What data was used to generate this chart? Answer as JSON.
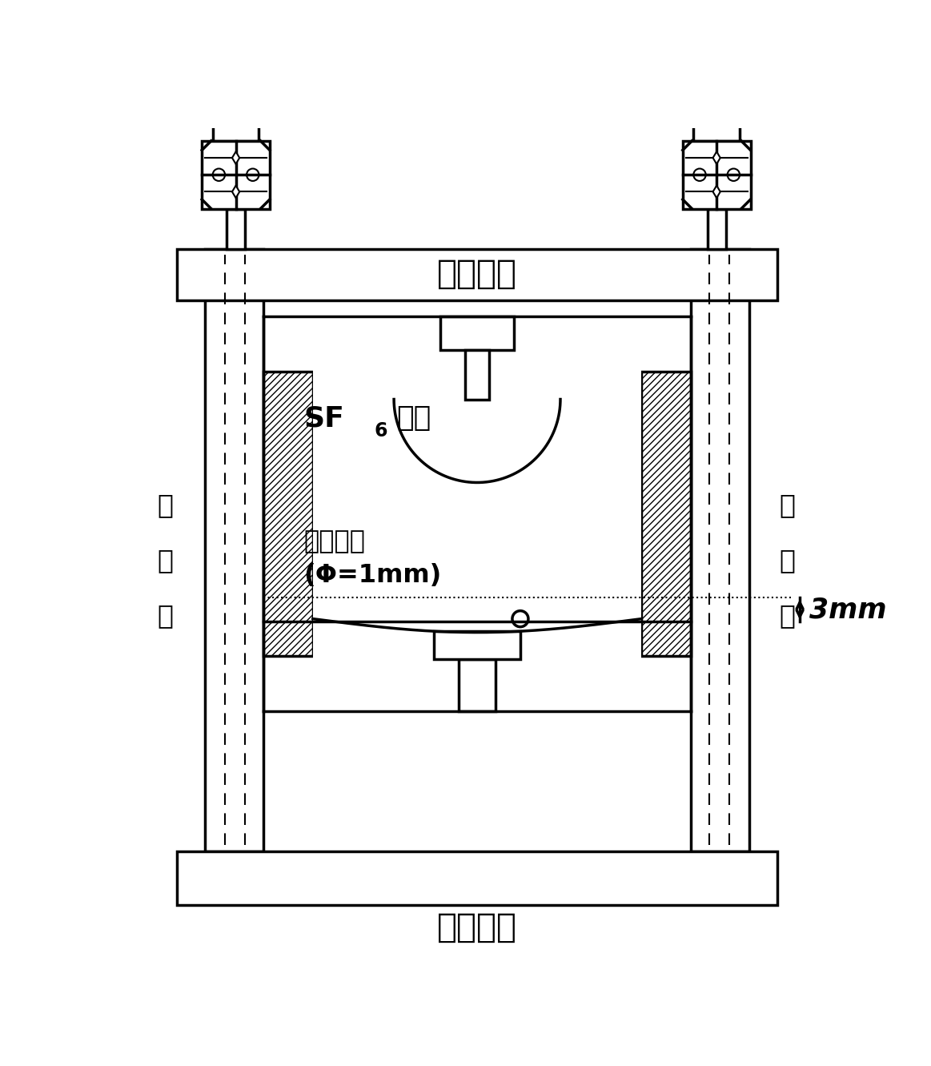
{
  "bg_color": "#ffffff",
  "lc": "#000000",
  "lw": 2.5,
  "lw_thin": 1.5,
  "text_high": "高压电极",
  "text_ground": "接地电极",
  "text_insulator": [
    "绝",
    "缘",
    "体"
  ],
  "text_sf6": "SF",
  "text_sf6_sub": "6",
  "text_sf6_rest": "气体",
  "text_particle": "金属微粒",
  "text_particle2": "(Φ=1mm)",
  "text_3mm": "3mm",
  "fig_w": 11.63,
  "fig_h": 13.31,
  "dpi": 100
}
